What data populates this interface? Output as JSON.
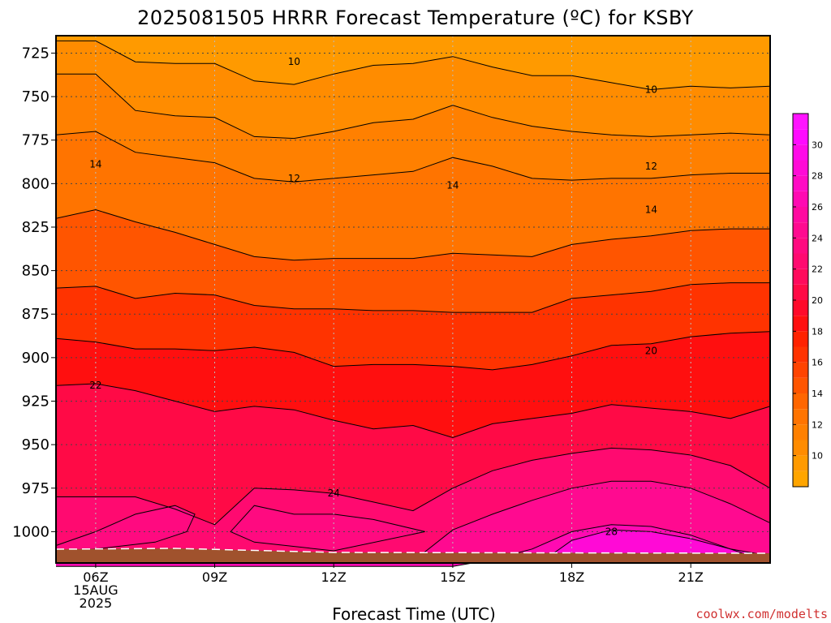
{
  "chart_data": {
    "type": "heatmap",
    "title": "2025081505 HRRR Forecast Temperature (ºC) for KSBY",
    "xlabel": "Forecast Time (UTC)",
    "ylabel": "",
    "credit": "coolwx.com/modelts",
    "x_ticks": [
      {
        "hour": 6,
        "lines": [
          "06Z",
          "15AUG",
          "2025"
        ]
      },
      {
        "hour": 9,
        "lines": [
          "09Z"
        ]
      },
      {
        "hour": 12,
        "lines": [
          "12Z"
        ]
      },
      {
        "hour": 15,
        "lines": [
          "15Z"
        ]
      },
      {
        "hour": 18,
        "lines": [
          "18Z"
        ]
      },
      {
        "hour": 21,
        "lines": [
          "21Z"
        ]
      }
    ],
    "xlim": [
      5,
      23
    ],
    "ylim": [
      1018,
      715
    ],
    "y_ticks": [
      725,
      750,
      775,
      800,
      825,
      850,
      875,
      900,
      925,
      950,
      975,
      1000
    ],
    "grid": true,
    "colorbar": {
      "ticks": [
        10,
        12,
        14,
        16,
        18,
        20,
        22,
        24,
        26,
        28,
        30
      ],
      "levels": [
        8,
        9,
        10,
        11,
        12,
        13,
        14,
        15,
        16,
        17,
        18,
        19,
        20,
        21,
        22,
        23,
        24,
        25,
        26,
        27,
        28,
        29,
        30,
        31,
        32
      ],
      "colors": [
        "#FFA500",
        "#FF9A00",
        "#FF8C00",
        "#FF8000",
        "#FF7400",
        "#FF6600",
        "#FF5500",
        "#FF4400",
        "#FF3300",
        "#FF2200",
        "#FF0F0F",
        "#FF0A2A",
        "#FF0A46",
        "#FF0A5C",
        "#FF0A70",
        "#FF0A80",
        "#FF0A90",
        "#FF0AA0",
        "#FF0AB2",
        "#FF0AC4",
        "#FF0AD6",
        "#FF0AE8",
        "#FF0AFF",
        "#FF14FF"
      ]
    },
    "hours": [
      5,
      6,
      7,
      8,
      9,
      10,
      11,
      12,
      13,
      14,
      15,
      16,
      17,
      18,
      19,
      20,
      21,
      22,
      23
    ],
    "isotherms": [
      {
        "value": 10,
        "label": true,
        "p": [
          718,
          718,
          730,
          731,
          731,
          741,
          743,
          737,
          732,
          731,
          727,
          733,
          738,
          738,
          742,
          746,
          744,
          745,
          744
        ]
      },
      {
        "value": 11,
        "label": false,
        "p": [
          737,
          737,
          758,
          761,
          762,
          773,
          774,
          770,
          765,
          763,
          755,
          762,
          767,
          770,
          772,
          773,
          772,
          771,
          772
        ]
      },
      {
        "value": 12,
        "label": true,
        "p": [
          772,
          770,
          782,
          785,
          788,
          797,
          799,
          797,
          795,
          793,
          785,
          790,
          797,
          798,
          797,
          797,
          795,
          794,
          794
        ]
      },
      {
        "value": 14,
        "label": true,
        "p": [
          820,
          815,
          822,
          828,
          835,
          842,
          844,
          843,
          843,
          843,
          840,
          841,
          842,
          835,
          832,
          830,
          827,
          826,
          826
        ]
      },
      {
        "value": 16,
        "label": false,
        "p": [
          860,
          859,
          866,
          863,
          864,
          870,
          872,
          872,
          873,
          873,
          874,
          874,
          874,
          866,
          864,
          862,
          858,
          857,
          857
        ]
      },
      {
        "value": 18,
        "label": false,
        "p": [
          889,
          891,
          895,
          895,
          896,
          894,
          897,
          905,
          904,
          904,
          905,
          907,
          904,
          899,
          893,
          892,
          888,
          886,
          885
        ]
      },
      {
        "value": 20,
        "label": true,
        "p": [
          916,
          915,
          919,
          925,
          931,
          928,
          930,
          936,
          941,
          939,
          946,
          938,
          935,
          932,
          927,
          929,
          931,
          935,
          928
        ]
      },
      {
        "value": 22,
        "label": false,
        "p": [
          980,
          980,
          980,
          987,
          996,
          975,
          976,
          978,
          983,
          988,
          975,
          965,
          959,
          955,
          952,
          953,
          956,
          962,
          975
        ]
      },
      {
        "value": 24,
        "label": true,
        "p": [
          1018,
          1012,
          1012,
          1015,
          1016,
          1015,
          1013,
          1015,
          1016,
          1017,
          999,
          990,
          982,
          975,
          971,
          971,
          975,
          984,
          995
        ]
      },
      {
        "value": 26,
        "label": true,
        "p": [
          1020,
          1020,
          1020,
          1020,
          1020,
          1020,
          1020,
          1020,
          1020,
          1020,
          1020,
          1016,
          1010,
          1000,
          996,
          997,
          1002,
          1010,
          1018
        ]
      }
    ],
    "left_pocket": {
      "value": 22,
      "points": [
        [
          5,
          1008
        ],
        [
          6,
          1000
        ],
        [
          7,
          990
        ],
        [
          8,
          985
        ],
        [
          8.5,
          990
        ],
        [
          8.3,
          1000
        ],
        [
          7.5,
          1006
        ],
        [
          6,
          1010
        ],
        [
          5,
          1012
        ]
      ]
    },
    "center_pocket": {
      "value": 22,
      "points": [
        [
          9.4,
          1000
        ],
        [
          10,
          985
        ],
        [
          11,
          990
        ],
        [
          12,
          990
        ],
        [
          13,
          993
        ],
        [
          14.3,
          1000
        ],
        [
          12,
          1011
        ],
        [
          10,
          1006
        ]
      ]
    },
    "ground_color": "#A0522D",
    "contour_labels": [
      {
        "text": "10",
        "hour": 11,
        "p": 730
      },
      {
        "text": "10",
        "hour": 20,
        "p": 746
      },
      {
        "text": "12",
        "hour": 11,
        "p": 797
      },
      {
        "text": "12",
        "hour": 20,
        "p": 790
      },
      {
        "text": "14",
        "hour": 6,
        "p": 789
      },
      {
        "text": "14",
        "hour": 15,
        "p": 801
      },
      {
        "text": "14",
        "hour": 20,
        "p": 815
      },
      {
        "text": "20",
        "hour": 20,
        "p": 896
      },
      {
        "text": "22",
        "hour": 6,
        "p": 916
      },
      {
        "text": "24",
        "hour": 12,
        "p": 978
      },
      {
        "text": "28",
        "hour": 19,
        "p": 1000
      }
    ]
  }
}
